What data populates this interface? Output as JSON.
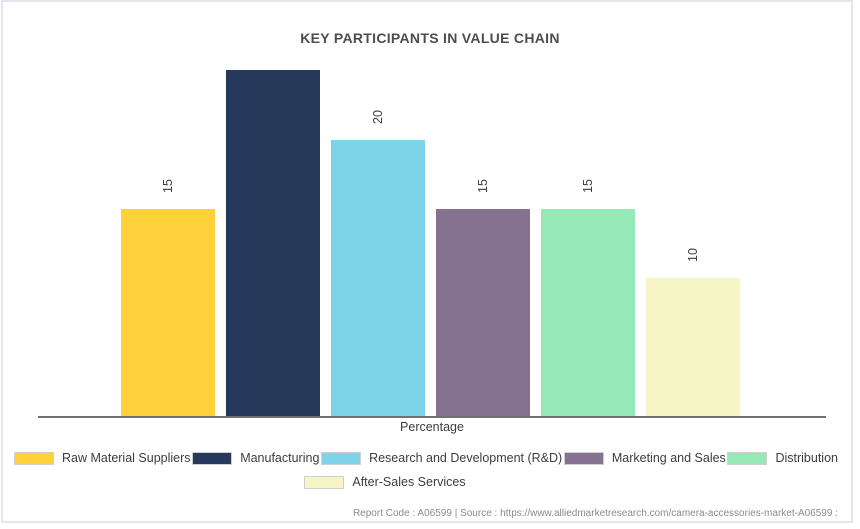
{
  "chart_data": {
    "type": "bar",
    "title": "KEY PARTICIPANTS IN VALUE CHAIN",
    "xlabel": "Percentage",
    "categories": [
      "Raw Material Suppliers",
      "Manufacturing",
      "Research and Development (R&D)",
      "Marketing and Sales",
      "Distribution",
      "After-Sales Services"
    ],
    "values": [
      15,
      25,
      20,
      15,
      15,
      10
    ],
    "display_labels": [
      "15",
      "",
      "20",
      "15",
      "15",
      "10"
    ],
    "colors": [
      "#FFD13B",
      "#26395B",
      "#7DD4E8",
      "#857291",
      "#96E8B6",
      "#F5F5C5"
    ],
    "ylim": [
      0,
      30
    ],
    "grid": false,
    "legend_position": "bottom",
    "legend_rows": [
      [
        0,
        1,
        2,
        3,
        4
      ],
      [
        5
      ]
    ]
  },
  "footer": {
    "text": "Report Code : A06599  |  Source : https://www.alliedmarketresearch.com/camera-accessories-market-A06599 :"
  }
}
